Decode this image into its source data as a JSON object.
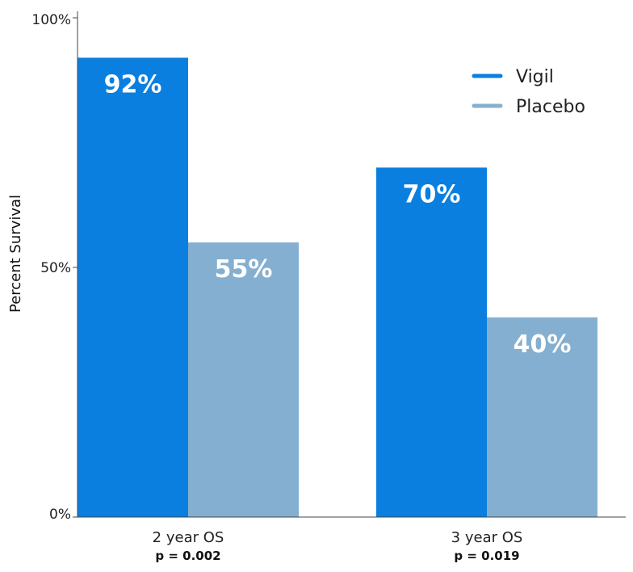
{
  "chart_data": {
    "type": "bar",
    "title": "",
    "xlabel": "",
    "ylabel": "Percent Survival",
    "ylim": [
      0,
      100
    ],
    "yticks": [
      0,
      50,
      100
    ],
    "ytick_labels": [
      "0%",
      "50%",
      "100%"
    ],
    "grid": false,
    "legend_position": "top-right",
    "categories": [
      "2 year OS",
      "3 year OS"
    ],
    "category_sublabels": [
      "p = 0.002",
      "p = 0.019"
    ],
    "series": [
      {
        "name": "Vigil",
        "color": "#0A7FE0",
        "values": [
          92,
          70
        ],
        "data_labels": [
          "92%",
          "70%"
        ]
      },
      {
        "name": "Placebo",
        "color": "#85AFD0",
        "values": [
          55,
          40
        ],
        "data_labels": [
          "55%",
          "40%"
        ]
      }
    ]
  }
}
